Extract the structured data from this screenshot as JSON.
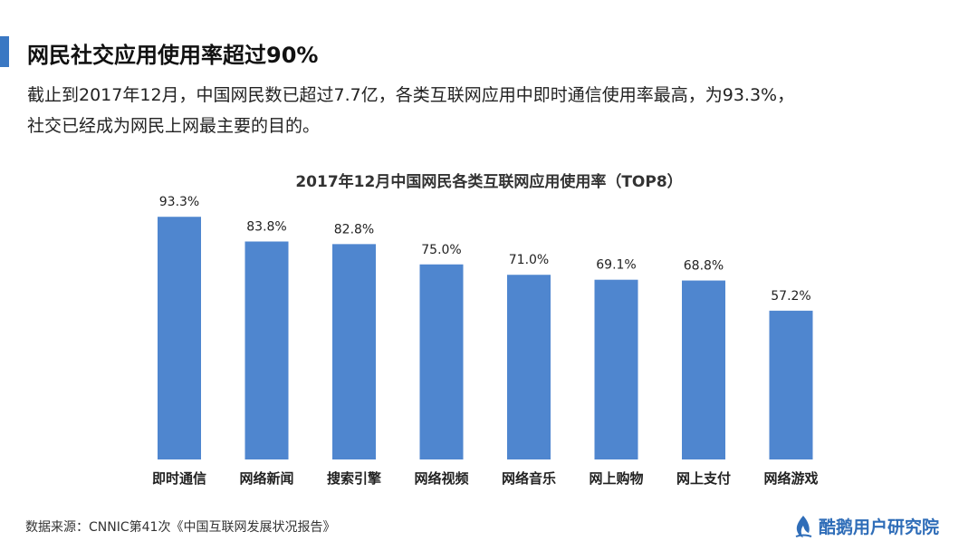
{
  "header": {
    "title": "网民社交应用使用率超过90%",
    "intro_line1": "截止到2017年12月，中国网民数已超过7.7亿，各类互联网应用中即时通信使用率最高，为93.3%，",
    "intro_line2": "社交已经成为网民上网最主要的目的。"
  },
  "chart_data": {
    "type": "bar",
    "title": "2017年12月中国网民各类互联网应用使用率（TOP8）",
    "categories": [
      "即时通信",
      "网络新闻",
      "搜索引擎",
      "网络视频",
      "网络音乐",
      "网上购物",
      "网上支付",
      "网络游戏"
    ],
    "values": [
      93.3,
      83.8,
      82.8,
      75.0,
      71.0,
      69.1,
      68.8,
      57.2
    ],
    "value_labels": [
      "93.3%",
      "83.8%",
      "82.8%",
      "75.0%",
      "71.0%",
      "69.1%",
      "68.8%",
      "57.2%"
    ],
    "xlabel": "",
    "ylabel": "",
    "ylim": [
      0,
      100
    ],
    "grid": false,
    "legend": "none",
    "bar_color": "#4f86cf"
  },
  "footer": {
    "source": "数据来源：CNNIC第41次《中国互联网发展状况报告》",
    "brand": "酷鹅用户研究院",
    "brand_color": "#2f6db8"
  }
}
